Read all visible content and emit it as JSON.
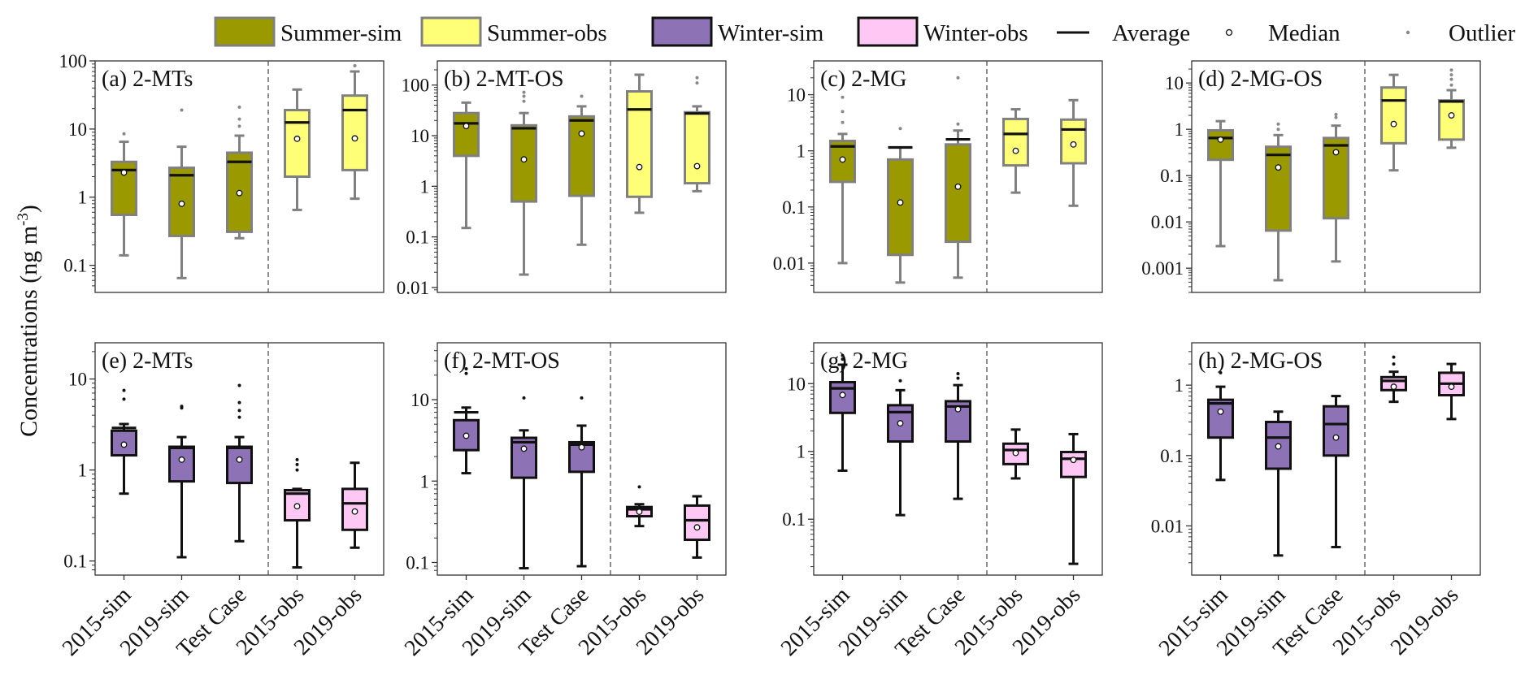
{
  "legend": {
    "items": [
      {
        "type": "box",
        "label": "Summer-sim",
        "fill": "#9a9a00",
        "stroke": "#808080"
      },
      {
        "type": "box",
        "label": "Summer-obs",
        "fill": "#ffff77",
        "stroke": "#808080"
      },
      {
        "type": "box",
        "label": "Winter-sim",
        "fill": "#8e72b6",
        "stroke": "#111111"
      },
      {
        "type": "box",
        "label": "Winter-obs",
        "fill": "#ffc8f4",
        "stroke": "#111111"
      },
      {
        "type": "line",
        "label": "Average"
      },
      {
        "type": "circle",
        "label": "Median"
      },
      {
        "type": "dot",
        "label": "Outlier"
      }
    ]
  },
  "ylabel_main": "Concentrations (ng m",
  "ylabel_sup": "-3",
  "ylabel_close": ")",
  "categories": [
    "2015-sim",
    "2019-sim",
    "Test Case",
    "2015-obs",
    "2019-obs"
  ],
  "colors": {
    "summer_sim": "#9a9a00",
    "summer_obs": "#ffff77",
    "winter_sim": "#8e72b6",
    "winter_obs": "#ffc8f4",
    "summer_stroke": "#808080",
    "winter_stroke": "#111111"
  },
  "chart_data": [
    {
      "type": "box",
      "season": "summer",
      "title": "(a) 2-MTs",
      "yscale": "log",
      "ylim": [
        0.04,
        100
      ],
      "yticks": [
        0.1,
        1,
        10,
        100
      ],
      "ytick_labels": [
        "0.1",
        "1",
        "10",
        "100"
      ],
      "boxes": [
        {
          "category": "2015-sim",
          "kind": "sim",
          "min": 0.14,
          "q1": 0.55,
          "median": 2.3,
          "q3": 3.3,
          "max": 6.5,
          "mean": 2.5,
          "outliers": [
            8.5
          ]
        },
        {
          "category": "2019-sim",
          "kind": "sim",
          "min": 0.065,
          "q1": 0.27,
          "median": 0.8,
          "q3": 2.7,
          "max": 5.5,
          "mean": 2.1,
          "outliers": [
            19
          ]
        },
        {
          "category": "Test Case",
          "kind": "sim",
          "min": 0.25,
          "q1": 0.31,
          "median": 1.15,
          "q3": 4.5,
          "max": 8,
          "mean": 3.3,
          "outliers": [
            11,
            14,
            21
          ]
        },
        {
          "category": "2015-obs",
          "kind": "obs",
          "min": 0.65,
          "q1": 2,
          "median": 7.2,
          "q3": 19,
          "max": 38,
          "mean": 12.5,
          "outliers": []
        },
        {
          "category": "2019-obs",
          "kind": "obs",
          "min": 0.95,
          "q1": 2.5,
          "median": 7.3,
          "q3": 31,
          "max": 70,
          "mean": 19,
          "outliers": [
            85
          ]
        }
      ]
    },
    {
      "type": "box",
      "season": "summer",
      "title": "(b) 2-MT-OS",
      "yscale": "log",
      "ylim": [
        0.008,
        300
      ],
      "yticks": [
        0.01,
        0.1,
        1,
        10,
        100
      ],
      "ytick_labels": [
        "0.01",
        "0.1",
        "1",
        "10",
        "100"
      ],
      "boxes": [
        {
          "category": "2015-sim",
          "kind": "sim",
          "min": 0.15,
          "q1": 4,
          "median": 15.5,
          "q3": 28,
          "max": 45,
          "mean": 17.5,
          "outliers": []
        },
        {
          "category": "2019-sim",
          "kind": "sim",
          "min": 0.018,
          "q1": 0.5,
          "median": 3.4,
          "q3": 16,
          "max": 28,
          "mean": 14,
          "outliers": [
            48,
            60,
            72
          ]
        },
        {
          "category": "Test Case",
          "kind": "sim",
          "min": 0.07,
          "q1": 0.65,
          "median": 11,
          "q3": 24,
          "max": 38,
          "mean": 20,
          "outliers": [
            60
          ]
        },
        {
          "category": "2015-obs",
          "kind": "obs",
          "min": 0.3,
          "q1": 0.62,
          "median": 2.4,
          "q3": 75,
          "max": 160,
          "mean": 33,
          "outliers": []
        },
        {
          "category": "2019-obs",
          "kind": "obs",
          "min": 0.8,
          "q1": 1.15,
          "median": 2.5,
          "q3": 29,
          "max": 38,
          "mean": 27.5,
          "outliers": [
            110,
            140
          ]
        }
      ]
    },
    {
      "type": "box",
      "season": "summer",
      "title": "(c) 2-MG",
      "yscale": "log",
      "ylim": [
        0.003,
        40
      ],
      "yticks": [
        0.01,
        0.1,
        1,
        10
      ],
      "ytick_labels": [
        "0.01",
        "0.1",
        "1",
        "10"
      ],
      "boxes": [
        {
          "category": "2015-sim",
          "kind": "sim",
          "min": 0.01,
          "q1": 0.28,
          "median": 0.7,
          "q3": 1.5,
          "max": 2,
          "mean": 1.2,
          "outliers": [
            3.2,
            5,
            9
          ]
        },
        {
          "category": "2019-sim",
          "kind": "sim",
          "min": 0.0045,
          "q1": 0.014,
          "median": 0.12,
          "q3": 0.7,
          "max": 1.15,
          "mean": 1.15,
          "outliers": [
            2.5
          ]
        },
        {
          "category": "Test Case",
          "kind": "sim",
          "min": 0.0055,
          "q1": 0.024,
          "median": 0.23,
          "q3": 1.3,
          "max": 2.3,
          "mean": 1.6,
          "outliers": [
            3,
            20
          ]
        },
        {
          "category": "2015-obs",
          "kind": "obs",
          "min": 0.18,
          "q1": 0.55,
          "median": 1,
          "q3": 3.7,
          "max": 5.5,
          "mean": 2,
          "outliers": []
        },
        {
          "category": "2019-obs",
          "kind": "obs",
          "min": 0.105,
          "q1": 0.6,
          "median": 1.3,
          "q3": 3.6,
          "max": 8,
          "mean": 2.4,
          "outliers": []
        }
      ]
    },
    {
      "type": "box",
      "season": "summer",
      "title": "(d) 2-MG-OS",
      "yscale": "log",
      "ylim": [
        0.0003,
        30
      ],
      "yticks": [
        0.001,
        0.01,
        0.1,
        1,
        10
      ],
      "ytick_labels": [
        "0.001",
        "0.01",
        "0.1",
        "1",
        "10"
      ],
      "boxes": [
        {
          "category": "2015-sim",
          "kind": "sim",
          "min": 0.003,
          "q1": 0.22,
          "median": 0.6,
          "q3": 0.95,
          "max": 1.5,
          "mean": 0.65,
          "outliers": []
        },
        {
          "category": "2019-sim",
          "kind": "sim",
          "min": 0.00055,
          "q1": 0.0065,
          "median": 0.15,
          "q3": 0.42,
          "max": 0.75,
          "mean": 0.28,
          "outliers": [
            1,
            1.3
          ]
        },
        {
          "category": "Test Case",
          "kind": "sim",
          "min": 0.0014,
          "q1": 0.012,
          "median": 0.32,
          "q3": 0.65,
          "max": 1.2,
          "mean": 0.45,
          "outliers": [
            1.8,
            2.1
          ]
        },
        {
          "category": "2015-obs",
          "kind": "obs",
          "min": 0.13,
          "q1": 0.5,
          "median": 1.3,
          "q3": 8,
          "max": 15,
          "mean": 4.2,
          "outliers": []
        },
        {
          "category": "2019-obs",
          "kind": "obs",
          "min": 0.4,
          "q1": 0.6,
          "median": 2,
          "q3": 4.2,
          "max": 7,
          "mean": 4,
          "outliers": [
            9,
            12,
            15,
            19
          ]
        }
      ]
    },
    {
      "type": "box",
      "season": "winter",
      "title": "(e) 2-MTs",
      "yscale": "log",
      "ylim": [
        0.07,
        25
      ],
      "yticks": [
        0.1,
        1,
        10
      ],
      "ytick_labels": [
        "0.1",
        "1",
        "10"
      ],
      "boxes": [
        {
          "category": "2015-sim",
          "kind": "sim",
          "min": 0.55,
          "q1": 1.45,
          "median": 1.9,
          "q3": 2.7,
          "max": 3.2,
          "mean": 2.9,
          "outliers": [
            6,
            7.5
          ]
        },
        {
          "category": "2019-sim",
          "kind": "sim",
          "min": 0.11,
          "q1": 0.75,
          "median": 1.3,
          "q3": 1.8,
          "max": 2.3,
          "mean": 1.75,
          "outliers": [
            4.8,
            5
          ]
        },
        {
          "category": "Test Case",
          "kind": "sim",
          "min": 0.165,
          "q1": 0.72,
          "median": 1.3,
          "q3": 1.8,
          "max": 2.3,
          "mean": 1.75,
          "outliers": [
            3.8,
            4.5,
            5.5,
            8.5
          ]
        },
        {
          "category": "2015-obs",
          "kind": "obs",
          "min": 0.085,
          "q1": 0.28,
          "median": 0.4,
          "q3": 0.6,
          "max": 0.62,
          "mean": 0.55,
          "outliers": [
            1,
            1.15,
            1.3
          ]
        },
        {
          "category": "2019-obs",
          "kind": "obs",
          "min": 0.14,
          "q1": 0.22,
          "median": 0.35,
          "q3": 0.62,
          "max": 1.2,
          "mean": 0.43,
          "outliers": []
        }
      ]
    },
    {
      "type": "box",
      "season": "winter",
      "title": "(f) 2-MT-OS",
      "yscale": "log",
      "ylim": [
        0.07,
        50
      ],
      "yticks": [
        0.1,
        1,
        10
      ],
      "ytick_labels": [
        "0.1",
        "1",
        "10"
      ],
      "boxes": [
        {
          "category": "2015-sim",
          "kind": "sim",
          "min": 1.25,
          "q1": 2.4,
          "median": 3.6,
          "q3": 5.6,
          "max": 8,
          "mean": 7,
          "outliers": [
            21,
            24
          ]
        },
        {
          "category": "2019-sim",
          "kind": "sim",
          "min": 0.085,
          "q1": 1.1,
          "median": 2.5,
          "q3": 3.4,
          "max": 4.2,
          "mean": 3,
          "outliers": [
            10.5
          ]
        },
        {
          "category": "Test Case",
          "kind": "sim",
          "min": 0.09,
          "q1": 1.3,
          "median": 2.6,
          "q3": 3,
          "max": 4.8,
          "mean": 2.8,
          "outliers": [
            10.5
          ]
        },
        {
          "category": "2015-obs",
          "kind": "obs",
          "min": 0.28,
          "q1": 0.37,
          "median": 0.42,
          "q3": 0.48,
          "max": 0.52,
          "mean": 0.45,
          "outliers": [
            0.85
          ]
        },
        {
          "category": "2019-obs",
          "kind": "obs",
          "min": 0.115,
          "q1": 0.19,
          "median": 0.27,
          "q3": 0.5,
          "max": 0.65,
          "mean": 0.33,
          "outliers": []
        }
      ]
    },
    {
      "type": "box",
      "season": "winter",
      "title": "(g) 2-MG",
      "yscale": "log",
      "ylim": [
        0.015,
        40
      ],
      "yticks": [
        0.1,
        1,
        10
      ],
      "ytick_labels": [
        "0.1",
        "1",
        "10"
      ],
      "boxes": [
        {
          "category": "2015-sim",
          "kind": "sim",
          "min": 0.52,
          "q1": 3.7,
          "median": 6.8,
          "q3": 10.5,
          "max": 19,
          "mean": 8.5,
          "outliers": [
            23,
            26
          ]
        },
        {
          "category": "2019-sim",
          "kind": "sim",
          "min": 0.115,
          "q1": 1.4,
          "median": 2.6,
          "q3": 4.8,
          "max": 8,
          "mean": 3.8,
          "outliers": [
            11
          ]
        },
        {
          "category": "Test Case",
          "kind": "sim",
          "min": 0.2,
          "q1": 1.4,
          "median": 4.2,
          "q3": 5.5,
          "max": 9.5,
          "mean": 4.6,
          "outliers": [
            12,
            14
          ]
        },
        {
          "category": "2015-obs",
          "kind": "obs",
          "min": 0.4,
          "q1": 0.65,
          "median": 0.95,
          "q3": 1.3,
          "max": 2.1,
          "mean": 1.05,
          "outliers": []
        },
        {
          "category": "2019-obs",
          "kind": "obs",
          "min": 0.022,
          "q1": 0.42,
          "median": 0.75,
          "q3": 0.98,
          "max": 1.8,
          "mean": 0.78,
          "outliers": []
        }
      ]
    },
    {
      "type": "box",
      "season": "winter",
      "title": "(h) 2-MG-OS",
      "yscale": "log",
      "ylim": [
        0.002,
        4
      ],
      "yticks": [
        0.01,
        0.1,
        1
      ],
      "ytick_labels": [
        "0.01",
        "0.1",
        "1"
      ],
      "boxes": [
        {
          "category": "2015-sim",
          "kind": "sim",
          "min": 0.045,
          "q1": 0.18,
          "median": 0.42,
          "q3": 0.62,
          "max": 0.95,
          "mean": 0.55,
          "outliers": [
            1.5
          ]
        },
        {
          "category": "2019-sim",
          "kind": "sim",
          "min": 0.0038,
          "q1": 0.065,
          "median": 0.135,
          "q3": 0.3,
          "max": 0.42,
          "mean": 0.18,
          "outliers": []
        },
        {
          "category": "Test Case",
          "kind": "sim",
          "min": 0.005,
          "q1": 0.1,
          "median": 0.18,
          "q3": 0.5,
          "max": 0.7,
          "mean": 0.28,
          "outliers": []
        },
        {
          "category": "2015-obs",
          "kind": "obs",
          "min": 0.58,
          "q1": 0.85,
          "median": 0.95,
          "q3": 1.3,
          "max": 1.55,
          "mean": 1.15,
          "outliers": [
            2,
            2.5
          ]
        },
        {
          "category": "2019-obs",
          "kind": "obs",
          "min": 0.33,
          "q1": 0.72,
          "median": 0.95,
          "q3": 1.5,
          "max": 2,
          "mean": 1.05,
          "outliers": []
        }
      ]
    }
  ]
}
